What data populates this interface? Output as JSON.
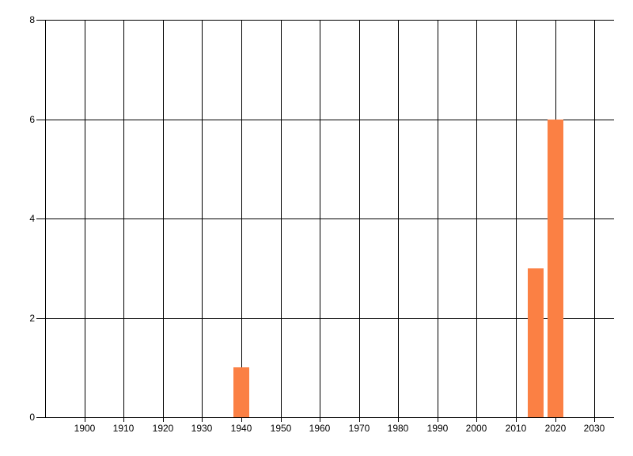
{
  "chart_data": {
    "type": "bar",
    "title": "",
    "xlabel": "",
    "ylabel": "",
    "x": [
      1940,
      2015,
      2020
    ],
    "values": [
      1,
      3,
      6
    ],
    "bar_width_years": 4,
    "xlim": [
      1890,
      2035
    ],
    "ylim": [
      0,
      8
    ],
    "x_ticks": [
      1900,
      1910,
      1920,
      1930,
      1940,
      1950,
      1960,
      1970,
      1980,
      1990,
      2000,
      2010,
      2020,
      2030
    ],
    "y_ticks": [
      0,
      2,
      4,
      6,
      8
    ],
    "grid": true,
    "legend": false,
    "colors": {
      "bar": "#FB8044",
      "grid": "#000000",
      "axis": "#000000",
      "text": "#000000",
      "background": "#FFFFFF"
    }
  }
}
